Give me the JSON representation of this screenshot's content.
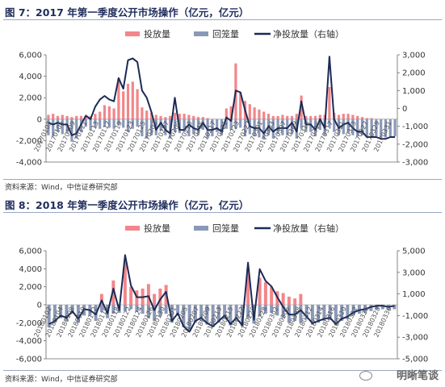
{
  "figure1": {
    "title": "图 7：2017 年第一季度公开市场操作（亿元，亿元）",
    "source": "资料来源：Wind，中信证券研究部"
  },
  "figure2": {
    "title": "图 8：2018 年第一季度公开市场操作（亿元，亿元）",
    "source": "资料来源：Wind，中信证券研究部"
  },
  "watermark": {
    "text": "明晰笔谈",
    "icon": "wechat-icon"
  },
  "colors": {
    "injection": "#f2868a",
    "withdrawal": "#8a98b8",
    "net": "#1b2a56"
  },
  "chart_data": [
    {
      "type": "bar",
      "legend": [
        "投放量",
        "回笼量",
        "净投放量（右轴）"
      ],
      "legend_placement": "top",
      "ylim": [
        -4000,
        6000
      ],
      "y_ticks": [
        "6,000",
        "4,000",
        "2,000",
        "0",
        "-2,000",
        "-4,000"
      ],
      "y2lim": [
        -3000,
        3000
      ],
      "y2_ticks": [
        "3,000",
        "2,000",
        "1,000",
        "0",
        "-1,000",
        "-2,000",
        "-3,000"
      ],
      "x_labels": [
        "20170103",
        "20170105",
        "20170109",
        "20170111",
        "20170113",
        "20170117",
        "20170119",
        "20170123",
        "20170125",
        "20170203",
        "20170207",
        "20170209",
        "20170213",
        "20170215",
        "20170217",
        "20170221",
        "20170223",
        "20170227",
        "20170301",
        "20170303",
        "20170307",
        "20170309",
        "20170313",
        "20170315",
        "20170317",
        "20170321",
        "20170323",
        "20170327",
        "20170329",
        "20170331"
      ],
      "series": [
        {
          "name": "投放量",
          "values": [
            400,
            500,
            300,
            400,
            300,
            200,
            300,
            300,
            200,
            300,
            500,
            700,
            1300,
            1200,
            1000,
            3800,
            2600,
            3300,
            3500,
            2800,
            1100,
            800,
            600,
            400,
            300,
            200,
            300,
            600,
            500,
            500,
            400,
            300,
            200,
            200,
            100,
            0,
            0,
            0,
            1000,
            1200,
            5200,
            2500,
            1700,
            1400,
            1100,
            900,
            700,
            500,
            300,
            300,
            400,
            300,
            300,
            500,
            2200,
            300,
            300,
            300,
            400,
            400,
            3000,
            600,
            400,
            500,
            500,
            400,
            300,
            200,
            100,
            100,
            0,
            0,
            0,
            0,
            0
          ]
        },
        {
          "name": "回笼量",
          "values": [
            -1500,
            -1600,
            -1200,
            -1400,
            -1300,
            -2100,
            -1800,
            -1200,
            -700,
            -1000,
            -800,
            -900,
            -700,
            -800,
            -900,
            -600,
            -800,
            -1200,
            -900,
            -700,
            -1600,
            -1800,
            -1500,
            -1500,
            -1100,
            -1500,
            -1800,
            -1200,
            -1300,
            -1200,
            -1600,
            -1400,
            -1500,
            -1000,
            -1800,
            -1600,
            -1200,
            -1500,
            -900,
            -1000,
            -900,
            -800,
            -1600,
            -1400,
            -1600,
            -1700,
            -1900,
            -1500,
            -1800,
            -1400,
            -1500,
            -1500,
            -1400,
            -1800,
            -900,
            -1200,
            -1200,
            -1600,
            -1000,
            -1500,
            -700,
            -1200,
            -1500,
            -1400,
            -1300,
            -1500,
            -1600,
            -1500,
            -1700,
            -1700,
            -1600,
            -1700,
            -1700,
            -1600,
            -1600
          ]
        },
        {
          "name": "净投放量（右轴）",
          "values": [
            -800,
            -900,
            -800,
            -900,
            -900,
            -1500,
            -1400,
            -900,
            -400,
            -600,
            100,
            500,
            700,
            500,
            400,
            1700,
            1100,
            2700,
            2800,
            2600,
            1000,
            600,
            -200,
            -1200,
            -800,
            -1200,
            -1400,
            600,
            -1200,
            -1200,
            -900,
            -1100,
            -1200,
            -800,
            -1200,
            -1200,
            -1100,
            -1300,
            -500,
            -700,
            1000,
            900,
            -100,
            -1000,
            -1100,
            -1100,
            -1400,
            -1000,
            -1300,
            -1100,
            -1100,
            -1100,
            -800,
            -1300,
            400,
            -900,
            -900,
            -1200,
            -600,
            -1100,
            2900,
            -600,
            -1100,
            -900,
            -800,
            -1100,
            -1300,
            -1300,
            -1600,
            -1600,
            -1600,
            -1700,
            -1700,
            -1600,
            -1600
          ]
        }
      ]
    },
    {
      "type": "bar",
      "legend": [
        "投放量",
        "回笼量",
        "净投放量（右轴）"
      ],
      "legend_placement": "top",
      "ylim": [
        -6000,
        6000
      ],
      "y_ticks": [
        "6,000",
        "4,000",
        "2,000",
        "0",
        "-2,000",
        "-4,000",
        "-6,000"
      ],
      "y2lim": [
        -5000,
        5000
      ],
      "y2_ticks": [
        "5,000",
        "3,000",
        "1,000",
        "-1,000",
        "-3,000",
        "-5,000"
      ],
      "x_labels": [
        "20180102",
        "20180104",
        "20180108",
        "20180110",
        "20180112",
        "20180116",
        "20180118",
        "20180122",
        "20180124",
        "20180126",
        "20180130",
        "20180201",
        "20180205",
        "20180207",
        "20180209",
        "20180213",
        "20180215",
        "20180222",
        "20180226",
        "20180228",
        "20180302",
        "20180306",
        "20180308",
        "20180312",
        "20180314",
        "20180316",
        "20180320",
        "20180322",
        "20180326",
        "20180328",
        "20180330"
      ],
      "series": [
        {
          "name": "投放量",
          "values": [
            0,
            0,
            0,
            0,
            0,
            0,
            0,
            0,
            0,
            1200,
            0,
            2700,
            0,
            4800,
            2000,
            1600,
            1800,
            2300,
            1200,
            1800,
            2200,
            0,
            0,
            0,
            0,
            0,
            0,
            0,
            0,
            0,
            0,
            0,
            0,
            0,
            4000,
            0,
            3000,
            2500,
            2000,
            1500,
            1300,
            900,
            700,
            1200,
            0,
            0,
            0,
            0,
            0,
            0,
            0,
            0,
            0,
            0,
            0,
            0,
            0,
            0,
            0,
            0
          ]
        },
        {
          "name": "回笼量",
          "values": [
            -2500,
            -2000,
            -1500,
            -1800,
            -1000,
            -2000,
            -1200,
            -1200,
            -1800,
            -800,
            -1500,
            -1000,
            -900,
            -700,
            -500,
            -800,
            -1000,
            -1500,
            -1800,
            -1300,
            -1000,
            -2000,
            -1200,
            -2500,
            -2800,
            -2000,
            -1800,
            -2200,
            -2500,
            -2000,
            -1500,
            -2300,
            -1800,
            -2400,
            -1500,
            -2100,
            -1300,
            -1000,
            -900,
            -1200,
            -1500,
            -2000,
            -1800,
            -2000,
            -1600,
            -2200,
            -2000,
            -1800,
            -1700,
            -2300,
            -1800,
            -1600,
            -1200,
            -1000,
            -900,
            -700,
            -500,
            -500,
            -600,
            -500
          ]
        },
        {
          "name": "净投放量（右轴）",
          "values": [
            -1800,
            -1500,
            -1000,
            -1200,
            -600,
            -1300,
            -400,
            -500,
            -900,
            400,
            -800,
            1500,
            -500,
            4600,
            1800,
            700,
            700,
            800,
            -500,
            500,
            1200,
            -1500,
            -800,
            -2000,
            -2500,
            -1500,
            -1200,
            -1700,
            -2000,
            -1500,
            -1000,
            -1800,
            -1200,
            -1900,
            3900,
            -1400,
            3300,
            2200,
            1700,
            700,
            -200,
            -900,
            -900,
            -500,
            -1100,
            -1700,
            -1500,
            -1300,
            -1200,
            -1800,
            -1300,
            -1100,
            -700,
            -500,
            -400,
            -200,
            -100,
            -100,
            -200,
            -100
          ]
        }
      ]
    }
  ]
}
